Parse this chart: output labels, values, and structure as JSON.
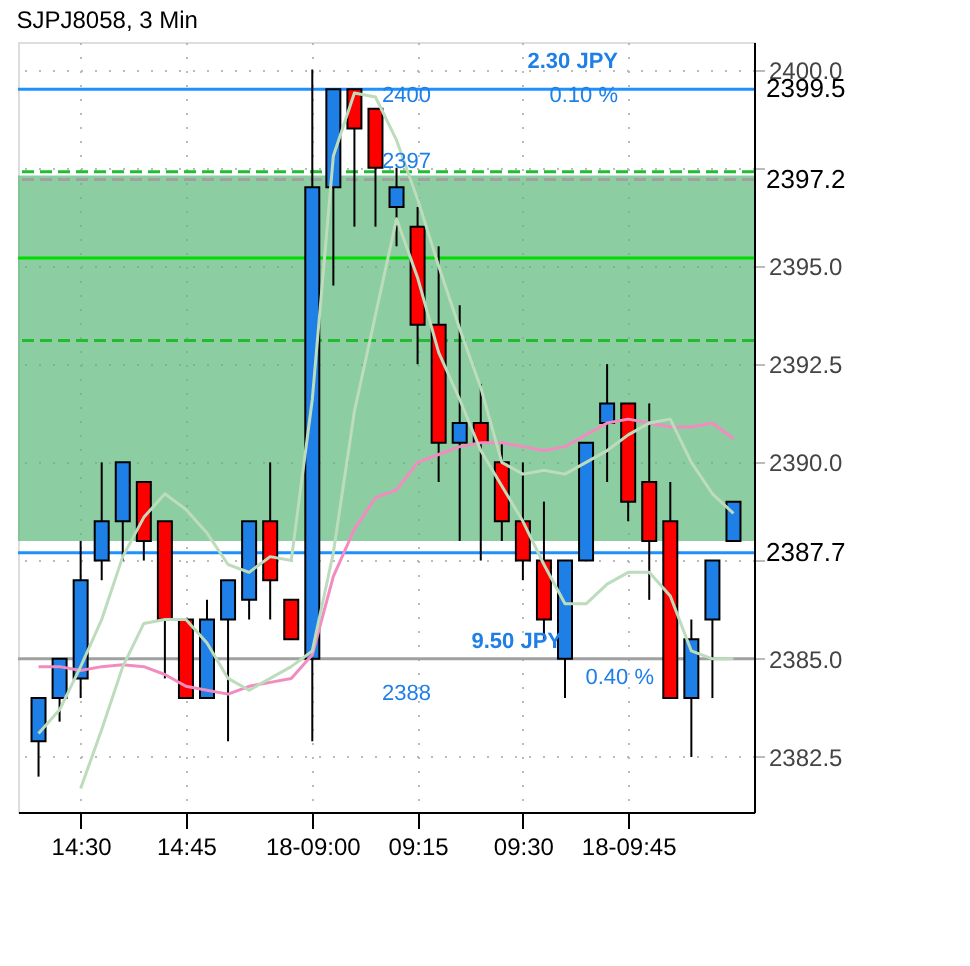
{
  "chart_data": {
    "type": "candlestick",
    "title": "SJPJ8058, 3 Min",
    "categories": [
      null,
      null,
      "14:30",
      null,
      null,
      null,
      null,
      "14:45",
      null,
      null,
      null,
      null,
      null,
      "18-09:00",
      null,
      null,
      null,
      null,
      "09:15",
      null,
      null,
      null,
      null,
      "09:30",
      null,
      null,
      null,
      null,
      "18-09:45",
      null,
      null,
      null,
      null,
      null
    ],
    "ohlc": [
      [
        2382.9,
        2384.0,
        2382.0,
        2384.0
      ],
      [
        2384.0,
        2385.0,
        2383.4,
        2385.0
      ],
      [
        2384.5,
        2388.0,
        2384.0,
        2387.0
      ],
      [
        2387.5,
        2390.0,
        2387.0,
        2388.5
      ],
      [
        2388.5,
        2390.0,
        2387.5,
        2390.0
      ],
      [
        2389.5,
        2389.5,
        2387.5,
        2388.0
      ],
      [
        2388.5,
        2388.5,
        2384.5,
        2386.0
      ],
      [
        2386.0,
        2386.0,
        2384.0,
        2384.0
      ],
      [
        2384.0,
        2386.5,
        2384.0,
        2386.0
      ],
      [
        2386.0,
        2387.0,
        2382.9,
        2387.0
      ],
      [
        2386.5,
        2388.5,
        2386.0,
        2388.5
      ],
      [
        2388.5,
        2390.0,
        2386.0,
        2387.0
      ],
      [
        2386.5,
        2386.5,
        2385.5,
        2385.5
      ],
      [
        2385.0,
        2400.0,
        2382.9,
        2397.0
      ],
      [
        2397.0,
        2399.5,
        2394.5,
        2399.5
      ],
      [
        2399.5,
        2399.5,
        2396.0,
        2398.5
      ],
      [
        2399.0,
        2399.0,
        2396.0,
        2397.5
      ],
      [
        2396.5,
        2397.5,
        2395.5,
        2397.0
      ],
      [
        2396.0,
        2396.5,
        2392.5,
        2393.5
      ],
      [
        2393.5,
        2395.5,
        2389.5,
        2390.5
      ],
      [
        2390.5,
        2394.0,
        2388.0,
        2391.0
      ],
      [
        2391.0,
        2392.0,
        2387.5,
        2390.5
      ],
      [
        2390.0,
        2390.5,
        2388.0,
        2388.5
      ],
      [
        2388.5,
        2390.0,
        2387.0,
        2387.5
      ],
      [
        2387.5,
        2389.0,
        2385.5,
        2386.0
      ],
      [
        2385.0,
        2387.5,
        2384.0,
        2387.5
      ],
      [
        2387.5,
        2390.5,
        2387.5,
        2390.5
      ],
      [
        2391.0,
        2392.5,
        2389.5,
        2391.5
      ],
      [
        2391.5,
        2391.5,
        2388.5,
        2389.0
      ],
      [
        2389.5,
        2391.5,
        2386.5,
        2388.0
      ],
      [
        2388.5,
        2389.5,
        2384.0,
        2384.0
      ],
      [
        2384.0,
        2386.0,
        2382.5,
        2385.5
      ],
      [
        2386.0,
        2387.5,
        2384.0,
        2387.5
      ],
      [
        2388.0,
        2389.0,
        2388.0,
        2389.0
      ]
    ],
    "colors": [
      "#1e7fe6",
      "#1e7fe6",
      "#1e7fe6",
      "#1e7fe6",
      "#1e7fe6",
      "#ff0000",
      "#ff0000",
      "#ff0000",
      "#1e7fe6",
      "#1e7fe6",
      "#1e7fe6",
      "#ff0000",
      "#ff0000",
      "#1e7fe6",
      "#1e7fe6",
      "#ff0000",
      "#ff0000",
      "#1e7fe6",
      "#ff0000",
      "#ff0000",
      "#1e7fe6",
      "#ff0000",
      "#ff0000",
      "#ff0000",
      "#ff0000",
      "#1e7fe6",
      "#1e7fe6",
      "#1e7fe6",
      "#ff0000",
      "#ff0000",
      "#ff0000",
      "#1e7fe6",
      "#1e7fe6",
      "#1e7fe6"
    ],
    "series": [
      {
        "type": "line",
        "color": "#f28cc0",
        "values": [
          2384.8,
          2384.8,
          2384.7,
          2384.8,
          2384.85,
          2384.8,
          2384.6,
          2384.3,
          2384.2,
          2384.1,
          2384.3,
          2384.4,
          2384.5,
          2385.1,
          2387.1,
          2388.3,
          2389.1,
          2389.3,
          2390.0,
          2390.2,
          2390.4,
          2390.5,
          2390.5,
          2390.4,
          2390.3,
          2390.4,
          2390.7,
          2391.0,
          2391.1,
          2391.0,
          2390.9,
          2390.9,
          2391.0,
          2390.6
        ]
      },
      {
        "type": "line",
        "color": "#bcdcbc",
        "values": [
          2383.1,
          2383.7,
          2384.8,
          2386.0,
          2387.6,
          2388.6,
          2389.2,
          2388.8,
          2388.2,
          2387.4,
          2387.2,
          2387.6,
          2387.5,
          2391.6,
          2397.8,
          2399.4,
          2399.3,
          2398.2,
          2396.7,
          2395.0,
          2393.4,
          2391.9,
          2390.0,
          2389.7,
          2389.8,
          2389.7,
          2390.0,
          2390.3,
          2390.7,
          2391.0,
          2391.1,
          2390.0,
          2389.2,
          2388.7
        ]
      },
      {
        "type": "line",
        "color": "#bcdcbc",
        "values": [
          null,
          null,
          2381.7,
          2383.2,
          2384.8,
          2385.9,
          2386.0,
          2386.0,
          2385.4,
          2384.5,
          2384.2,
          2384.5,
          2384.8,
          2385.2,
          2387.7,
          2391.3,
          null,
          2396.2,
          2394.7,
          2392.8,
          2391.6,
          2390.3,
          2389.4,
          2388.5,
          2387.4,
          2386.4,
          2386.4,
          2386.9,
          2387.2,
          2387.2,
          2386.6,
          2385.2,
          2385.0,
          2385.0
        ]
      }
    ],
    "ylim": [
      2381.1,
      2400.7
    ],
    "yticks": [
      {
        "value": 2382.5,
        "label": "2382.5"
      },
      {
        "value": 2385,
        "label": "2385.0"
      },
      {
        "value": 2387.5,
        "label": null
      },
      {
        "value": 2390,
        "label": "2390.0"
      },
      {
        "value": 2392.5,
        "label": "2392.5"
      },
      {
        "value": 2395,
        "label": "2395.0"
      },
      {
        "value": 2397.5,
        "label": null
      },
      {
        "value": 2400,
        "label": "2400.0"
      }
    ],
    "grid": true,
    "bands": [
      {
        "axis": "y",
        "from": 2388.0,
        "to": 2397.3,
        "color": "#5cb87a"
      }
    ],
    "ref_lines": [
      {
        "axis": "y",
        "value": 2399.5,
        "label": "2399.5",
        "color": "#1e90ff",
        "line_style": "solid"
      },
      {
        "axis": "y",
        "value": 2397.2,
        "label": "2397.2",
        "color": "#a0a0a0",
        "line_style": "dashed"
      },
      {
        "axis": "y",
        "value": 2397.4,
        "color": "#22bb33",
        "line_style": "dashed"
      },
      {
        "axis": "y",
        "value": 2395.2,
        "color": "#00dd00",
        "line_style": "solid"
      },
      {
        "axis": "y",
        "value": 2393.1,
        "color": "#22bb33",
        "line_style": "dashed"
      },
      {
        "axis": "y",
        "value": 2387.7,
        "label": "2387.7",
        "color": "#1e90ff",
        "line_style": "solid"
      },
      {
        "axis": "y",
        "value": 2385.0,
        "color": "#a0a0a0",
        "line_style": "solid"
      }
    ],
    "annotations": [
      "2.30 JPY",
      "0.10 %",
      "2400",
      "2397",
      "9.50 JPY",
      "0.40 %",
      "2388"
    ]
  }
}
